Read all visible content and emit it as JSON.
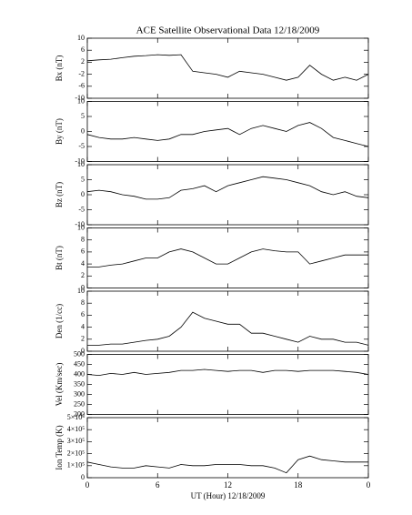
{
  "chart_data": [
    {
      "type": "line",
      "title": "ACE Satellite Observational Data   12/18/2009",
      "ylabel": "Bx (nT)",
      "color": "#000000",
      "x": [
        0,
        1,
        2,
        3,
        4,
        5,
        6,
        7,
        8,
        9,
        10,
        11,
        12,
        13,
        14,
        15,
        16,
        17,
        18,
        19,
        20,
        21,
        22,
        23,
        24
      ],
      "values": [
        2.5,
        2.8,
        3,
        3.5,
        4,
        4.2,
        4.5,
        4.3,
        4.5,
        -1,
        -1.5,
        -2,
        -3,
        -1,
        -1.5,
        -2,
        -3,
        -4,
        -3,
        1,
        -2,
        -4,
        -3,
        -4,
        -2
      ],
      "ylim": [
        -10,
        10
      ],
      "yticks": [
        10,
        6,
        2,
        -2,
        -6,
        -10
      ]
    },
    {
      "type": "line",
      "ylabel": "By (nT)",
      "color": "#000000",
      "x": [
        0,
        1,
        2,
        3,
        4,
        5,
        6,
        7,
        8,
        9,
        10,
        11,
        12,
        13,
        14,
        15,
        16,
        17,
        18,
        19,
        20,
        21,
        22,
        23,
        24
      ],
      "values": [
        -1,
        -2,
        -2.5,
        -2.5,
        -2,
        -2.5,
        -3,
        -2.5,
        -1,
        -1,
        0,
        0.5,
        1,
        -1,
        1,
        2,
        1,
        0,
        2,
        3,
        1,
        -2,
        -3,
        -4,
        -5
      ],
      "ylim": [
        -10,
        10
      ],
      "yticks": [
        10,
        5,
        0,
        -5,
        -10
      ]
    },
    {
      "type": "line",
      "ylabel": "Bz (nT)",
      "color": "#000000",
      "x": [
        0,
        1,
        2,
        3,
        4,
        5,
        6,
        7,
        8,
        9,
        10,
        11,
        12,
        13,
        14,
        15,
        16,
        17,
        18,
        19,
        20,
        21,
        22,
        23,
        24
      ],
      "values": [
        1,
        1.5,
        1,
        0,
        -0.5,
        -1.5,
        -1.5,
        -1,
        1.5,
        2,
        3,
        1,
        3,
        4,
        5,
        6,
        5.5,
        5,
        4,
        3,
        1,
        0,
        1,
        -0.5,
        -1
      ],
      "ylim": [
        -10,
        10
      ],
      "yticks": [
        10,
        5,
        0,
        -5,
        -10
      ]
    },
    {
      "type": "line",
      "ylabel": "Bt (nT)",
      "color": "#000000",
      "x": [
        0,
        1,
        2,
        3,
        4,
        5,
        6,
        7,
        8,
        9,
        10,
        11,
        12,
        13,
        14,
        15,
        16,
        17,
        18,
        19,
        20,
        21,
        22,
        23,
        24
      ],
      "values": [
        3.5,
        3.5,
        3.8,
        4,
        4.5,
        5,
        5,
        6,
        6.5,
        6,
        5,
        4,
        4,
        5,
        6,
        6.5,
        6.2,
        6,
        6,
        4,
        4.5,
        5,
        5.5,
        5.5,
        5.5
      ],
      "ylim": [
        0,
        10
      ],
      "yticks": [
        10,
        8,
        6,
        4,
        2,
        0
      ]
    },
    {
      "type": "line",
      "ylabel": "Den (1/cc)",
      "color": "#000000",
      "x": [
        0,
        1,
        2,
        3,
        4,
        5,
        6,
        7,
        8,
        9,
        10,
        11,
        12,
        13,
        14,
        15,
        16,
        17,
        18,
        19,
        20,
        21,
        22,
        23,
        24
      ],
      "values": [
        1,
        1,
        1.2,
        1.2,
        1.5,
        1.8,
        2,
        2.5,
        4,
        6.5,
        5.5,
        5,
        4.5,
        4.5,
        3,
        3,
        2.5,
        2,
        1.5,
        2.5,
        2,
        2,
        1.5,
        1.5,
        1
      ],
      "ylim": [
        0,
        10
      ],
      "yticks": [
        10,
        8,
        6,
        4,
        2,
        0
      ]
    },
    {
      "type": "line",
      "ylabel": "Vel (Km/sec)",
      "color": "#000000",
      "x": [
        0,
        1,
        2,
        3,
        4,
        5,
        6,
        7,
        8,
        9,
        10,
        11,
        12,
        13,
        14,
        15,
        16,
        17,
        18,
        19,
        20,
        21,
        22,
        23,
        24
      ],
      "values": [
        400,
        395,
        405,
        400,
        410,
        400,
        405,
        410,
        420,
        420,
        425,
        420,
        415,
        420,
        420,
        410,
        420,
        420,
        415,
        420,
        420,
        420,
        415,
        410,
        400
      ],
      "ylim": [
        200,
        500
      ],
      "yticks": [
        500,
        450,
        400,
        350,
        300,
        250,
        200
      ]
    },
    {
      "type": "line",
      "ylabel": "Ion Temp (K)",
      "xlabel": "UT (Hour)  12/18/2009",
      "color": "#000000",
      "x": [
        0,
        1,
        2,
        3,
        4,
        5,
        6,
        7,
        8,
        9,
        10,
        11,
        12,
        13,
        14,
        15,
        16,
        17,
        18,
        19,
        20,
        21,
        22,
        23,
        24
      ],
      "values": [
        130000,
        110000,
        90000,
        80000,
        80000,
        100000,
        90000,
        80000,
        110000,
        100000,
        100000,
        110000,
        110000,
        110000,
        100000,
        100000,
        80000,
        40000,
        150000,
        180000,
        150000,
        140000,
        130000,
        130000,
        130000
      ],
      "ylim": [
        0,
        500000
      ],
      "yticks": [
        {
          "value": 500000,
          "label": "5×10⁵"
        },
        {
          "value": 400000,
          "label": "4×10⁵"
        },
        {
          "value": 300000,
          "label": "3×10⁵"
        },
        {
          "value": 200000,
          "label": "2×10⁵"
        },
        {
          "value": 100000,
          "label": "1×10⁵"
        },
        0
      ],
      "xlim": [
        0,
        24
      ],
      "xticks": [
        0,
        6,
        12,
        18,
        {
          "value": 24,
          "label": "0"
        }
      ]
    }
  ]
}
